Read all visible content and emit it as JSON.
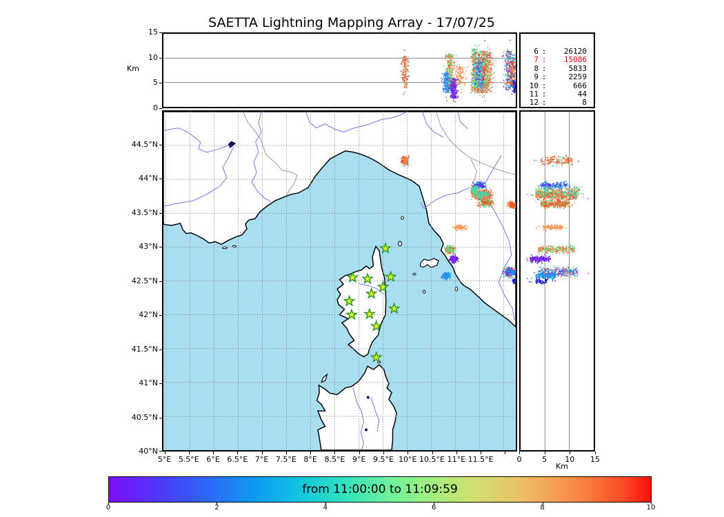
{
  "title": "SAETTA Lightning Mapping Array - 17/07/25",
  "axes": {
    "alt_label": "Km",
    "right_alt_label": "Km",
    "alt_ticks": [
      {
        "v": 0,
        "l": "0"
      },
      {
        "v": 5,
        "l": "5"
      },
      {
        "v": 10,
        "l": "10"
      },
      {
        "v": 15,
        "l": "15"
      }
    ],
    "alt_grid": [
      5,
      10
    ],
    "lon_ticks": [
      {
        "v": 5,
        "l": "5°E"
      },
      {
        "v": 5.5,
        "l": "5.5°E"
      },
      {
        "v": 6,
        "l": "6°E"
      },
      {
        "v": 6.5,
        "l": "6.5°E"
      },
      {
        "v": 7,
        "l": "7°E"
      },
      {
        "v": 7.5,
        "l": "7.5°E"
      },
      {
        "v": 8,
        "l": "8°E"
      },
      {
        "v": 8.5,
        "l": "8.5°E"
      },
      {
        "v": 9,
        "l": "9°E"
      },
      {
        "v": 9.5,
        "l": "9.5°E"
      },
      {
        "v": 10,
        "l": "10°E"
      },
      {
        "v": 10.5,
        "l": "10.5°E"
      },
      {
        "v": 11,
        "l": "11°E"
      },
      {
        "v": 11.5,
        "l": "11.5°E"
      }
    ],
    "lat_ticks": [
      {
        "v": 44.5,
        "l": "44.5°N"
      },
      {
        "v": 44,
        "l": "44°N"
      },
      {
        "v": 43.5,
        "l": "43.5°N"
      },
      {
        "v": 43,
        "l": "43°N"
      },
      {
        "v": 42.5,
        "l": "42.5°N"
      },
      {
        "v": 42,
        "l": "42°N"
      },
      {
        "v": 41.5,
        "l": "41.5°N"
      },
      {
        "v": 41,
        "l": "41°N"
      },
      {
        "v": 40.5,
        "l": "40.5°N"
      },
      {
        "v": 40,
        "l": "40°N"
      }
    ],
    "lon_grid": [
      5,
      5.5,
      6,
      6.5,
      7,
      7.5,
      8,
      8.5,
      9,
      9.5,
      10,
      10.5,
      11,
      11.5,
      12
    ],
    "lat_grid": [
      40.5,
      41,
      41.5,
      42,
      42.5,
      43,
      43.5,
      44,
      44.5
    ]
  },
  "source_counts": [
    {
      "sources": "6",
      "count": "26120",
      "color": "#000000"
    },
    {
      "sources": "7",
      "count": "15086",
      "color": "#e8000b"
    },
    {
      "sources": "8",
      "count": "5833",
      "color": "#000000"
    },
    {
      "sources": "9",
      "count": "2259",
      "color": "#000000"
    },
    {
      "sources": "10",
      "count": "666",
      "color": "#000000"
    },
    {
      "sources": "11",
      "count": "44",
      "color": "#000000"
    },
    {
      "sources": "12",
      "count": "8",
      "color": "#000000"
    }
  ],
  "colorbar": {
    "label": "from 11:00:00 to 11:09:59",
    "ticks": [
      "0",
      "2",
      "4",
      "6",
      "8",
      "10"
    ],
    "range": [
      0,
      10
    ]
  },
  "chart_data": {
    "type": "scatter",
    "title": "SAETTA Lightning Mapping Array - 17/07/25",
    "date": "17/07/25",
    "time_window": {
      "from": "11:00:00",
      "to": "11:09:59"
    },
    "panels": {
      "top": "altitude (Km, 0-15) vs longitude",
      "main": "VHF lightning sources map, 40-45N / 5-12.25E",
      "right": "latitude vs altitude (Km, 0-15)"
    },
    "altitude_range_km": [
      0,
      15
    ],
    "lon_range_deg_e": [
      4.95,
      12.25
    ],
    "lat_range_deg_n": [
      40,
      45
    ],
    "colorbar_meaning": "time within window, 0-10 minutes, rainbow violet-to-red",
    "source_count_by_min_stations": {
      "6": 26120,
      "7": 15086,
      "8": 5833,
      "9": 2259,
      "10": 666,
      "11": 44,
      "12": 8
    },
    "stations_lon_lat": [
      [
        9.55,
        42.98
      ],
      [
        8.87,
        42.55
      ],
      [
        9.18,
        42.53
      ],
      [
        9.66,
        42.56
      ],
      [
        9.5,
        42.41
      ],
      [
        9.26,
        42.31
      ],
      [
        8.8,
        42.2
      ],
      [
        9.73,
        42.09
      ],
      [
        9.22,
        42.01
      ],
      [
        8.85,
        42.0
      ],
      [
        9.36,
        41.83
      ],
      [
        9.36,
        41.37
      ]
    ],
    "clusters": [
      {
        "lon": 9.95,
        "lat": 44.28,
        "dlon": 0.05,
        "dlat": 0.05,
        "alt": [
          4.0,
          10.5
        ],
        "n": 180,
        "colors": [
          "#f03b1d",
          "#f03b1d",
          "#ef8a4e",
          "#e8b973",
          "#2fd9c0"
        ]
      },
      {
        "lon": 11.48,
        "lat": 43.92,
        "dlon": 0.09,
        "dlat": 0.035,
        "alt": [
          4.0,
          9.5
        ],
        "n": 200,
        "colors": [
          "#2c78f0",
          "#2c78f0",
          "#2c78f0",
          "#6a28ef",
          "#30c8e8"
        ]
      },
      {
        "lon": 11.38,
        "lat": 43.84,
        "dlon": 0.05,
        "dlat": 0.05,
        "alt": [
          3.0,
          12.0
        ],
        "n": 220,
        "colors": [
          "#35dbb0",
          "#2fd9c0",
          "#ef8a4e",
          "#f03b1d",
          "#8df06a"
        ]
      },
      {
        "lon": 11.55,
        "lat": 43.78,
        "dlon": 0.13,
        "dlat": 0.05,
        "alt": [
          3.0,
          11.5
        ],
        "n": 620,
        "colors": [
          "#f03b1d",
          "#f03b1d",
          "#f03b1d",
          "#ef8a4e",
          "#ef8a4e",
          "#e8b973",
          "#35dbb0"
        ]
      },
      {
        "lon": 11.62,
        "lat": 43.66,
        "dlon": 0.1,
        "dlat": 0.04,
        "alt": [
          4.0,
          10.0
        ],
        "n": 240,
        "colors": [
          "#ef8a4e",
          "#f0551f",
          "#e8b973",
          "#60e89a"
        ]
      },
      {
        "lon": 12.17,
        "lat": 43.63,
        "dlon": 0.07,
        "dlat": 0.035,
        "alt": [
          4.5,
          9.5
        ],
        "n": 130,
        "colors": [
          "#f0551f",
          "#ef8a4e"
        ]
      },
      {
        "lon": 11.08,
        "lat": 43.3,
        "dlon": 0.09,
        "dlat": 0.025,
        "alt": [
          4.5,
          8.5
        ],
        "n": 130,
        "colors": [
          "#ef8a4e",
          "#f0a060"
        ]
      },
      {
        "lon": 10.88,
        "lat": 42.97,
        "dlon": 0.07,
        "dlat": 0.04,
        "alt": [
          3.5,
          11.0
        ],
        "n": 280,
        "colors": [
          "#f0551f",
          "#ef8a4e",
          "#2fd9c0",
          "#5ae87d",
          "#e8b973"
        ]
      },
      {
        "lon": 10.95,
        "lat": 42.83,
        "dlon": 0.06,
        "dlat": 0.035,
        "alt": [
          1.8,
          6.0
        ],
        "n": 200,
        "colors": [
          "#6a1ae8",
          "#7a2bf0",
          "#5a0ad0"
        ]
      },
      {
        "lon": 10.8,
        "lat": 42.58,
        "dlon": 0.055,
        "dlat": 0.035,
        "alt": [
          3.0,
          7.2
        ],
        "n": 170,
        "colors": [
          "#2c78f0",
          "#1e9af2",
          "#2c78f0"
        ]
      },
      {
        "lon": 12.12,
        "lat": 42.64,
        "dlon": 0.09,
        "dlat": 0.05,
        "alt": [
          3.5,
          11.5
        ],
        "n": 300,
        "colors": [
          "#f03b1d",
          "#ef8a4e",
          "#2fd9c0",
          "#2c78f0",
          "#0aa8e8",
          "#6a28ef"
        ]
      },
      {
        "lon": 12.22,
        "lat": 42.5,
        "dlon": 0.035,
        "dlat": 0.02,
        "alt": [
          3.0,
          5.5
        ],
        "n": 60,
        "colors": [
          "#0a0ac0",
          "#2020d8"
        ]
      }
    ],
    "station_marker": {
      "shape": "star",
      "face": "#d7f520",
      "edge": "#1d8f1d"
    },
    "legend_position": "top-right box, sources count per minimum contributing stations"
  }
}
